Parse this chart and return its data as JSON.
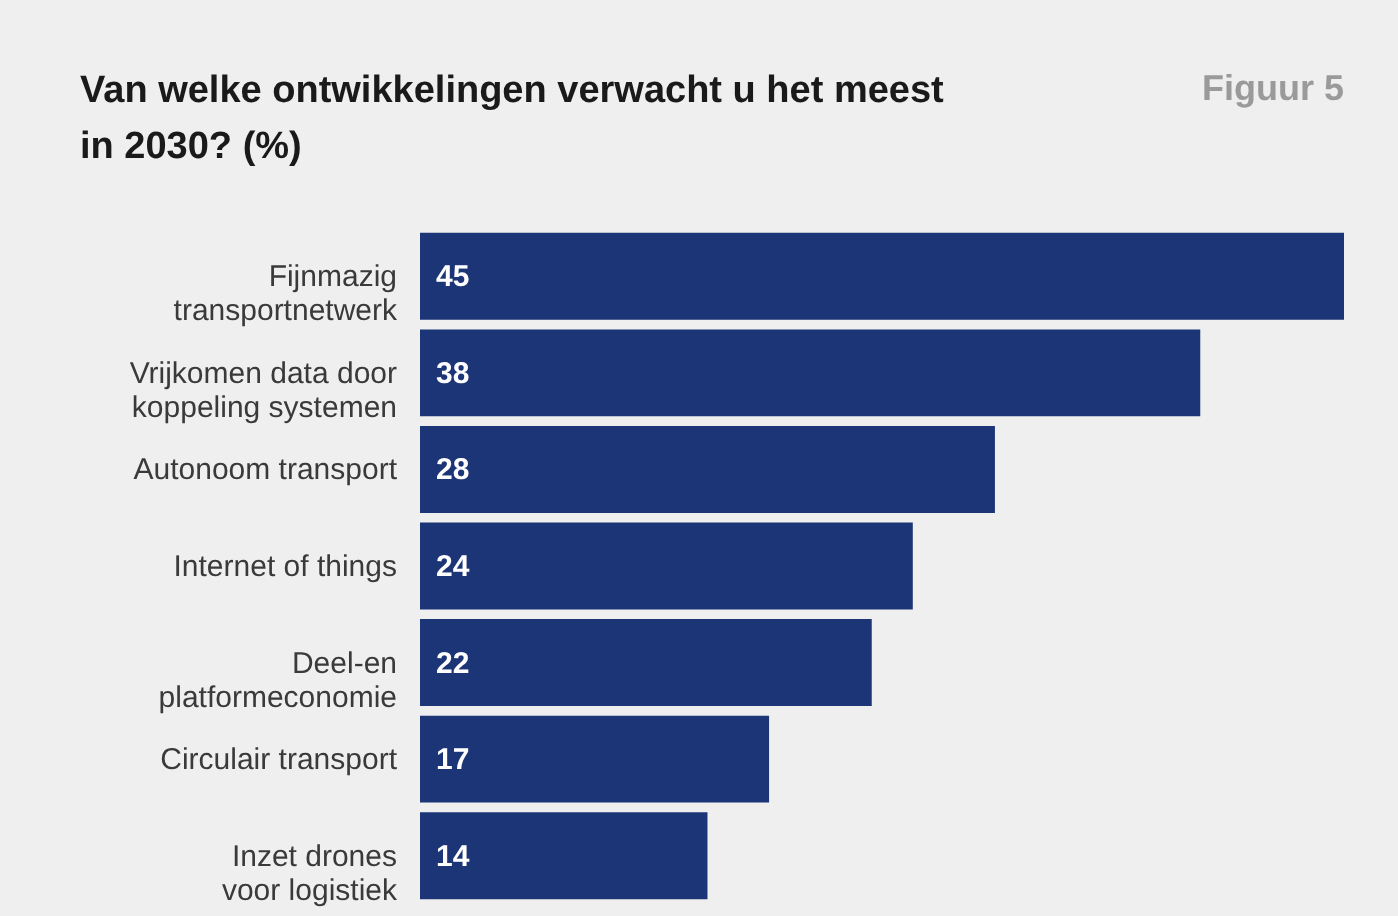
{
  "chart_data": {
    "type": "bar",
    "orientation": "horizontal",
    "title": "Van welke ontwikkelingen verwacht u het meest\nin 2030? (%)",
    "annotations": [
      "Figuur 5"
    ],
    "categories": [
      "Fijnmazig\ntransportnetwerk",
      "Vrijkomen data door\nkoppeling systemen",
      "Autonoom transport",
      "Internet of things",
      "Deel-en\nplatformeconomie",
      "Circulair transport",
      "Inzet drones\nvoor logistiek"
    ],
    "values": [
      45,
      38,
      28,
      24,
      22,
      17,
      14
    ],
    "color": "#1c3577",
    "xlim": [
      0,
      45
    ],
    "data_labels": true,
    "grid": false
  }
}
